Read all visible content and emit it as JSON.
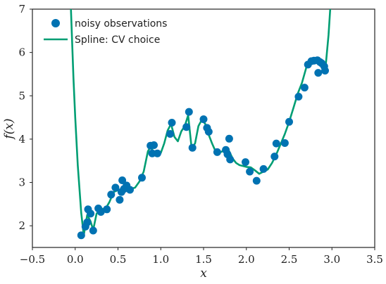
{
  "chart_data": {
    "type": "scatter",
    "title": "",
    "xlabel": "x",
    "ylabel": "f(x)",
    "xlim": [
      -0.5,
      3.5
    ],
    "ylim": [
      1.5,
      7.0
    ],
    "xticks": [
      -0.5,
      0.0,
      0.5,
      1.0,
      1.5,
      2.0,
      2.5,
      3.0,
      3.5
    ],
    "xtick_labels": [
      "−0.5",
      "0.0",
      "0.5",
      "1.0",
      "1.5",
      "2.0",
      "2.5",
      "3.0",
      "3.5"
    ],
    "yticks": [
      2,
      3,
      4,
      5,
      6,
      7
    ],
    "ytick_labels": [
      "2",
      "3",
      "4",
      "5",
      "6",
      "7"
    ],
    "grid": false,
    "legend_position": "top-left",
    "colors": {
      "points": "#0072B2",
      "spline": "#009E73",
      "frame": "#222222"
    },
    "series": [
      {
        "name": "noisy observations",
        "kind": "scatter",
        "x": [
          0.07,
          0.12,
          0.14,
          0.15,
          0.18,
          0.21,
          0.27,
          0.3,
          0.37,
          0.42,
          0.47,
          0.52,
          0.54,
          0.55,
          0.57,
          0.6,
          0.64,
          0.78,
          0.88,
          0.9,
          0.92,
          0.96,
          1.11,
          1.13,
          1.3,
          1.33,
          1.37,
          1.5,
          1.54,
          1.56,
          1.66,
          1.76,
          1.78,
          1.8,
          1.81,
          1.99,
          2.04,
          2.12,
          2.2,
          2.33,
          2.35,
          2.45,
          2.5,
          2.61,
          2.68,
          2.72,
          2.76,
          2.79,
          2.83,
          2.84,
          2.86,
          2.88,
          2.91,
          2.92
        ],
        "y": [
          1.78,
          1.98,
          2.08,
          2.38,
          2.28,
          1.89,
          2.4,
          2.32,
          2.38,
          2.72,
          2.88,
          2.6,
          2.78,
          3.05,
          2.85,
          2.93,
          2.83,
          3.11,
          3.85,
          3.67,
          3.86,
          3.67,
          4.12,
          4.38,
          4.28,
          4.63,
          3.8,
          4.46,
          4.26,
          4.17,
          3.7,
          3.75,
          3.65,
          4.01,
          3.53,
          3.47,
          3.25,
          3.04,
          3.31,
          3.6,
          3.9,
          3.91,
          4.4,
          4.98,
          5.19,
          5.72,
          5.8,
          5.81,
          5.82,
          5.53,
          5.78,
          5.75,
          5.68,
          5.58
        ]
      },
      {
        "name": "Spline: CV choice",
        "kind": "line",
        "x": [
          -0.05,
          -0.02,
          0.0,
          0.03,
          0.07,
          0.1,
          0.14,
          0.18,
          0.21,
          0.25,
          0.3,
          0.35,
          0.4,
          0.45,
          0.5,
          0.55,
          0.6,
          0.65,
          0.7,
          0.75,
          0.8,
          0.85,
          0.88,
          0.92,
          0.96,
          1.0,
          1.04,
          1.08,
          1.12,
          1.16,
          1.2,
          1.24,
          1.28,
          1.32,
          1.36,
          1.4,
          1.44,
          1.48,
          1.52,
          1.56,
          1.6,
          1.64,
          1.68,
          1.72,
          1.76,
          1.8,
          1.84,
          1.88,
          1.92,
          1.96,
          2.0,
          2.05,
          2.1,
          2.15,
          2.2,
          2.25,
          2.3,
          2.35,
          2.4,
          2.45,
          2.5,
          2.55,
          2.6,
          2.65,
          2.7,
          2.74,
          2.78,
          2.82,
          2.86,
          2.9,
          2.93,
          2.96,
          2.98
        ],
        "y": [
          7.0,
          5.4,
          4.5,
          3.4,
          2.3,
          1.78,
          2.25,
          2.1,
          1.9,
          2.28,
          2.4,
          2.38,
          2.55,
          2.78,
          2.82,
          2.8,
          2.9,
          2.85,
          2.88,
          3.02,
          3.25,
          3.72,
          3.82,
          3.7,
          3.72,
          3.68,
          3.9,
          4.2,
          4.35,
          4.05,
          3.95,
          4.18,
          4.3,
          4.55,
          3.8,
          3.9,
          4.3,
          4.45,
          4.35,
          4.1,
          3.9,
          3.72,
          3.68,
          3.72,
          3.8,
          3.72,
          3.55,
          3.45,
          3.4,
          3.38,
          3.36,
          3.35,
          3.28,
          3.2,
          3.25,
          3.3,
          3.45,
          3.65,
          3.88,
          4.12,
          4.4,
          4.72,
          5.05,
          5.3,
          5.65,
          5.78,
          5.82,
          5.78,
          5.72,
          5.6,
          5.75,
          6.4,
          7.0
        ]
      }
    ]
  }
}
